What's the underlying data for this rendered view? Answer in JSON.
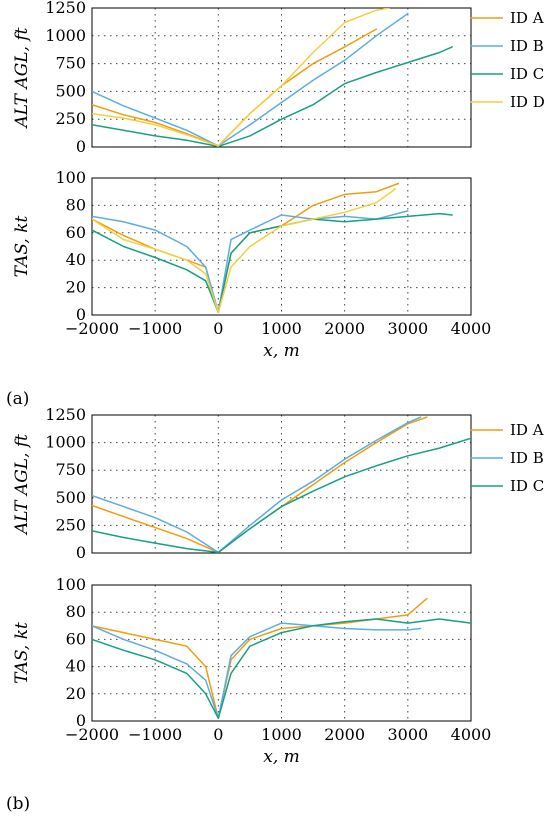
{
  "colors": {
    "ID A": "#F39C12",
    "ID B": "#5DADE2",
    "ID C": "#16A085",
    "ID D": "#F4D03F"
  },
  "panels": [
    {
      "caption": "(a)",
      "legend": [
        "ID A",
        "ID B",
        "ID C",
        "ID D"
      ]
    },
    {
      "caption": "(b)",
      "legend": [
        "ID A",
        "ID B",
        "ID C"
      ]
    }
  ],
  "chart_data": [
    {
      "type": "line",
      "xlabel": "",
      "ylabel": "ALT AGL, ft",
      "xlim": [
        -2000,
        4000
      ],
      "ylim": [
        0,
        1250
      ],
      "xticks": [
        -2000,
        -1000,
        0,
        1000,
        2000,
        3000,
        4000
      ],
      "yticks": [
        0,
        250,
        500,
        750,
        1000,
        1250
      ],
      "grid": true,
      "legend_position": "right",
      "show_xtick_labels": false,
      "series": [
        {
          "name": "ID A",
          "x": [
            -2000,
            -1500,
            -1000,
            -500,
            0,
            500,
            1000,
            1500,
            2000,
            2500
          ],
          "y": [
            380,
            290,
            220,
            120,
            10,
            300,
            550,
            750,
            900,
            1060
          ]
        },
        {
          "name": "ID B",
          "x": [
            -2000,
            -1500,
            -1000,
            -500,
            0,
            500,
            1000,
            1500,
            2000,
            2500,
            3000
          ],
          "y": [
            500,
            370,
            260,
            150,
            10,
            200,
            400,
            600,
            780,
            1000,
            1200
          ]
        },
        {
          "name": "ID C",
          "x": [
            -2000,
            -1500,
            -1000,
            -500,
            0,
            500,
            1000,
            1500,
            2000,
            2500,
            3000,
            3500,
            3700
          ],
          "y": [
            200,
            150,
            100,
            60,
            5,
            100,
            250,
            380,
            570,
            670,
            760,
            850,
            900
          ]
        },
        {
          "name": "ID D",
          "x": [
            -2000,
            -1500,
            -1000,
            -500,
            0,
            500,
            1000,
            1500,
            2000,
            2500,
            2700
          ],
          "y": [
            300,
            260,
            200,
            110,
            10,
            300,
            550,
            850,
            1120,
            1230,
            1250
          ]
        }
      ]
    },
    {
      "type": "line",
      "xlabel": "x, m",
      "ylabel": "TAS, kt",
      "xlim": [
        -2000,
        4000
      ],
      "ylim": [
        0,
        100
      ],
      "xticks": [
        -2000,
        -1000,
        0,
        1000,
        2000,
        3000,
        4000
      ],
      "yticks": [
        0,
        20,
        40,
        60,
        80,
        100
      ],
      "grid": true,
      "show_xtick_labels": true,
      "series": [
        {
          "name": "ID A",
          "x": [
            -2000,
            -1500,
            -1000,
            -500,
            -200,
            0,
            200,
            500,
            1000,
            1500,
            2000,
            2500,
            2850
          ],
          "y": [
            70,
            58,
            48,
            40,
            35,
            2,
            45,
            60,
            65,
            80,
            88,
            90,
            96
          ]
        },
        {
          "name": "ID B",
          "x": [
            -2000,
            -1500,
            -1000,
            -500,
            -200,
            0,
            200,
            500,
            1000,
            1500,
            2000,
            2500,
            3000
          ],
          "y": [
            72,
            68,
            62,
            50,
            35,
            2,
            55,
            62,
            73,
            70,
            72,
            70,
            76
          ]
        },
        {
          "name": "ID C",
          "x": [
            -2000,
            -1500,
            -1000,
            -500,
            -200,
            0,
            200,
            500,
            1000,
            1500,
            2000,
            2500,
            3000,
            3500,
            3700
          ],
          "y": [
            62,
            50,
            42,
            33,
            25,
            2,
            45,
            60,
            65,
            70,
            68,
            70,
            72,
            74,
            73
          ]
        },
        {
          "name": "ID D",
          "x": [
            -2000,
            -1500,
            -1000,
            -500,
            -200,
            0,
            200,
            500,
            1000,
            1500,
            2000,
            2500,
            2800
          ],
          "y": [
            70,
            55,
            48,
            40,
            30,
            2,
            35,
            50,
            65,
            70,
            75,
            82,
            92
          ]
        }
      ]
    },
    {
      "type": "line",
      "xlabel": "",
      "ylabel": "ALT AGL, ft",
      "xlim": [
        -2000,
        4000
      ],
      "ylim": [
        0,
        1250
      ],
      "xticks": [
        -2000,
        -1000,
        0,
        1000,
        2000,
        3000,
        4000
      ],
      "yticks": [
        0,
        250,
        500,
        750,
        1000,
        1250
      ],
      "grid": true,
      "legend_position": "right",
      "show_xtick_labels": false,
      "series": [
        {
          "name": "ID A",
          "x": [
            -2000,
            -1500,
            -1000,
            -500,
            0,
            500,
            1000,
            1500,
            2000,
            2500,
            3000,
            3300
          ],
          "y": [
            430,
            330,
            230,
            130,
            5,
            220,
            420,
            620,
            820,
            1000,
            1170,
            1230
          ]
        },
        {
          "name": "ID B",
          "x": [
            -2000,
            -1500,
            -1000,
            -500,
            0,
            500,
            1000,
            1500,
            2000,
            2500,
            3000,
            3200
          ],
          "y": [
            520,
            420,
            320,
            190,
            5,
            250,
            480,
            650,
            850,
            1020,
            1180,
            1230
          ]
        },
        {
          "name": "ID C",
          "x": [
            -2000,
            -1500,
            -1000,
            -500,
            0,
            500,
            1000,
            1500,
            2000,
            2500,
            3000,
            3500,
            4000
          ],
          "y": [
            200,
            140,
            90,
            40,
            5,
            220,
            420,
            560,
            690,
            790,
            880,
            950,
            1040
          ]
        }
      ]
    },
    {
      "type": "line",
      "xlabel": "x, m",
      "ylabel": "TAS, kt",
      "xlim": [
        -2000,
        4000
      ],
      "ylim": [
        0,
        100
      ],
      "xticks": [
        -2000,
        -1000,
        0,
        1000,
        2000,
        3000,
        4000
      ],
      "yticks": [
        0,
        20,
        40,
        60,
        80,
        100
      ],
      "grid": true,
      "show_xtick_labels": true,
      "series": [
        {
          "name": "ID A",
          "x": [
            -2000,
            -1500,
            -1000,
            -500,
            -200,
            0,
            200,
            500,
            1000,
            1500,
            2000,
            2500,
            3000,
            3300
          ],
          "y": [
            70,
            65,
            60,
            55,
            40,
            2,
            45,
            60,
            68,
            70,
            72,
            75,
            78,
            90
          ]
        },
        {
          "name": "ID B",
          "x": [
            -2000,
            -1500,
            -1000,
            -500,
            -200,
            0,
            200,
            500,
            1000,
            1500,
            2000,
            2500,
            3000,
            3200
          ],
          "y": [
            70,
            60,
            52,
            42,
            30,
            2,
            48,
            62,
            72,
            70,
            68,
            67,
            67,
            68
          ]
        },
        {
          "name": "ID C",
          "x": [
            -2000,
            -1500,
            -1000,
            -500,
            -200,
            0,
            200,
            500,
            1000,
            1500,
            2000,
            2500,
            3000,
            3500,
            4000
          ],
          "y": [
            60,
            52,
            45,
            35,
            20,
            2,
            35,
            55,
            65,
            70,
            73,
            75,
            72,
            75,
            72
          ]
        }
      ]
    }
  ]
}
